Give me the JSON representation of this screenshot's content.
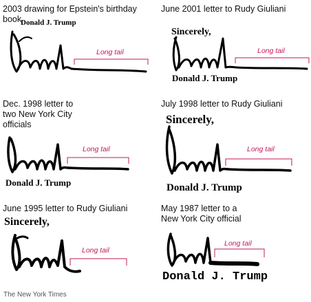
{
  "panels": [
    {
      "caption": "2003 drawing for Epstein's birthday book",
      "printed_texts": [
        "Donald J. Trump"
      ],
      "tail_label": "Long tail"
    },
    {
      "caption": "June 2001 letter to Rudy Giuliani",
      "printed_texts": [
        "Sincerely,",
        "Donald J. Trump"
      ],
      "tail_label": "Long tail"
    },
    {
      "caption": "Dec. 1998 letter to two New York City officials",
      "printed_texts": [
        "Donald J. Trump"
      ],
      "tail_label": "Long tail"
    },
    {
      "caption": "July 1998 letter to Rudy Giuliani",
      "printed_texts": [
        "Sincerely,",
        "Donald J. Trump"
      ],
      "tail_label": "Long tail"
    },
    {
      "caption": "June 1995 letter to Rudy Giuliani",
      "printed_texts": [
        "Sincerely,"
      ],
      "tail_label": "Long tail"
    },
    {
      "caption": "May 1987 letter to a New York City official",
      "printed_texts": [
        "Donald J. Trump"
      ],
      "tail_label": "Long tail"
    }
  ],
  "credit": "The New York Times",
  "colors": {
    "accent": "#c2185b",
    "ink": "#000000",
    "text": "#111111"
  }
}
